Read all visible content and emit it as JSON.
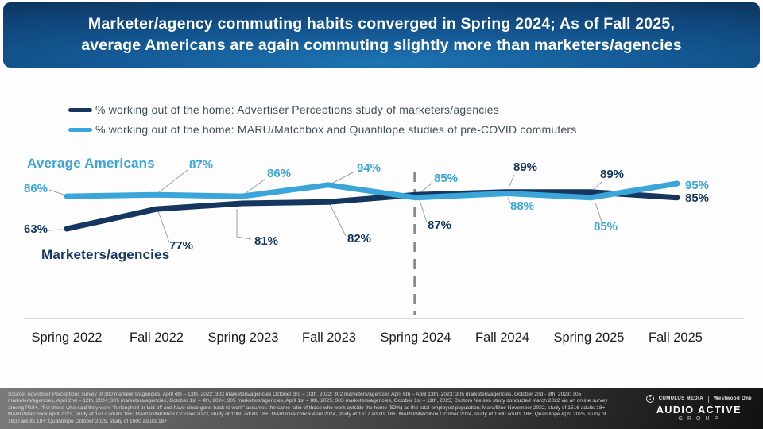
{
  "title": {
    "line1": "Marketer/agency commuting habits converged in Spring 2024; As of Fall 2025,",
    "line2": "average Americans are again commuting slightly more than marketers/agencies"
  },
  "legend": [
    {
      "label": "% working out of the home: Advertiser Perceptions study of marketers/agencies",
      "color": "#14365f"
    },
    {
      "label": "% working out of the home: MARU/Matchbox and Quantilope studies of pre-COVID commuters",
      "color": "#39a5d8"
    }
  ],
  "chart_data": {
    "type": "line",
    "categories": [
      "Spring 2022",
      "Fall 2022",
      "Spring 2023",
      "Fall 2023",
      "Spring 2024",
      "Fall 2024",
      "Spring 2025",
      "Fall 2025"
    ],
    "series": [
      {
        "name": "Marketers/agencies",
        "color": "#14365f",
        "values": [
          63,
          77,
          81,
          82,
          87,
          89,
          89,
          85
        ],
        "labels": [
          "63%",
          "77%",
          "81%",
          "82%",
          "87%",
          "89%",
          "89%",
          "85%"
        ]
      },
      {
        "name": "Average Americans",
        "color": "#39a5d8",
        "values": [
          86,
          87,
          86,
          94,
          85,
          88,
          85,
          95
        ],
        "labels": [
          "86%",
          "87%",
          "86%",
          "94%",
          "85%",
          "88%",
          "85%",
          "95%"
        ]
      }
    ],
    "annotations": {
      "divider_at": "Spring 2024"
    },
    "ylim": [
      60,
      100
    ],
    "grid": false,
    "legend_position": "top",
    "xlabel": "",
    "ylabel": "% working out of the home"
  },
  "footer": {
    "source_text": "Source: Advertiser Perceptions survey of 300 marketers/agencies, April 4th – 13th, 2022; 303 marketers/agencies October 3rd – 10th, 2022; 302 marketers/agencies April 6th – April 13th, 2023; 305 marketers/agencies, October 2nd - 9th, 2023; 305 marketers/agencies, April 2nd – 12th, 2024; 305 marketers/agencies, October 1st – 4th, 2024; 305 marketers/agencies, April 1st – 8th, 2025; 303 marketers/agencies, October 1st – 11th, 2025; Custom Nielsen study conducted March 2022 via an online survey among P18+. \"For those who said they were \"furloughed or laid off and have since gone back to work\" assumes the same ratio of those who work outside the home (52%) as the total employed population; Maru/Blue November 2022, study of 1516 adults 18+; MARU/Matchbox April 2023, study of 1617 adults 18+; MARU/Matchbox October 2023, study of 1000 adults 18+; MARU/Matchbox April 2024, study of 1617 adults 18+, MARU/Matchbox October 2024, study of 1600 adults 18+; Quantilope April 2025, study of 1600 adults 18+; Quantilope October 2025, study of 1600 adults 18+",
    "logo": {
      "cumulus": "CUMULUS MEDIA",
      "cumulus_icon": "C",
      "westwood": "Westwood One",
      "line1": "AUDIO ACTIVE",
      "line2": "GROUP"
    }
  }
}
